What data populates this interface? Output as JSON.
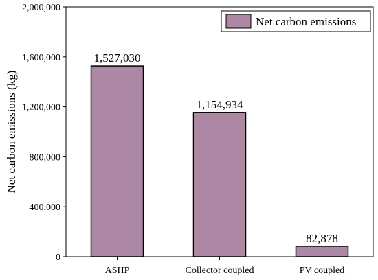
{
  "chart_data": {
    "type": "bar",
    "categories": [
      "ASHP",
      "Collector coupled",
      "PV coupled"
    ],
    "series": [
      {
        "name": "Net carbon emissions",
        "values": [
          1527030,
          1154934,
          82878
        ],
        "color": "#ad88a5",
        "data_labels": [
          "1,527,030",
          "1,154,934",
          "82,878"
        ]
      }
    ],
    "ylabel": "Net carbon emissions (kg)",
    "xlabel": "",
    "ylim": [
      0,
      2000000
    ],
    "yticks": [
      0,
      400000,
      800000,
      1200000,
      1600000,
      2000000
    ],
    "ytick_labels": [
      "0",
      "400,000",
      "800,000",
      "1,200,000",
      "1,600,000",
      "2,000,000"
    ],
    "legend": {
      "position": "top-right",
      "entries": [
        "Net carbon emissions"
      ]
    },
    "grid": false
  }
}
